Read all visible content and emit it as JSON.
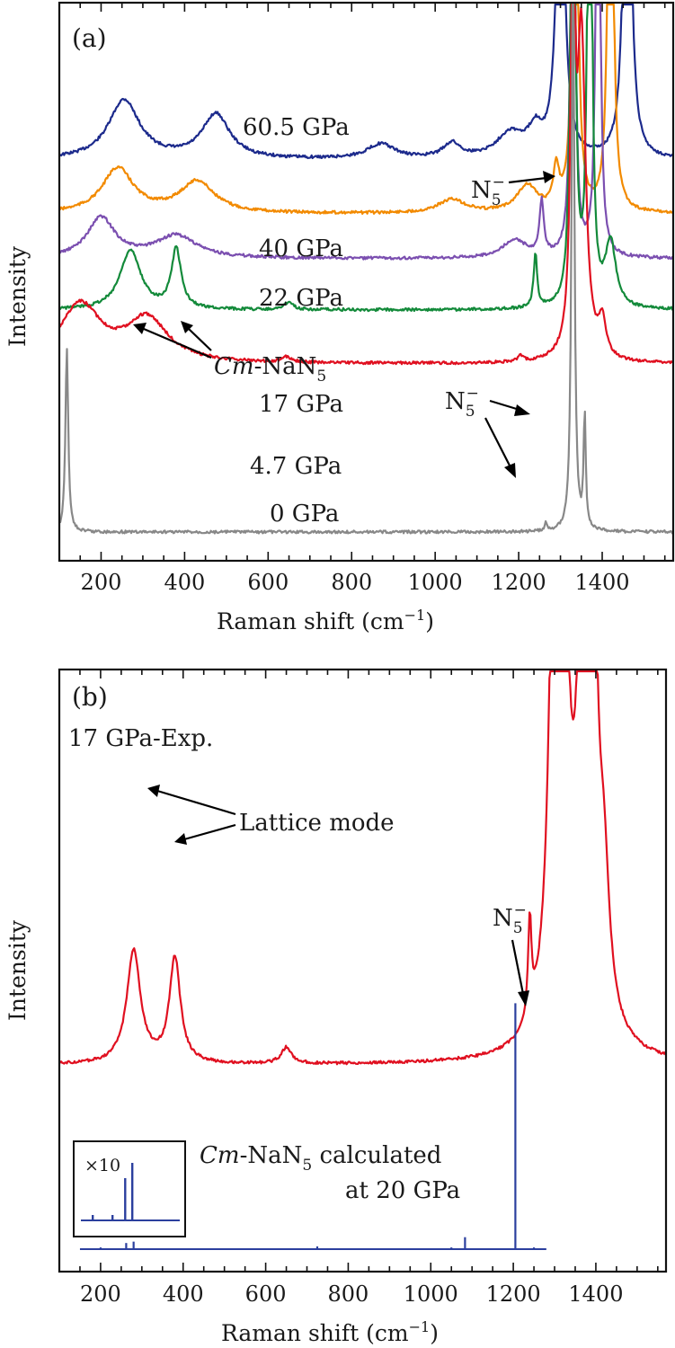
{
  "chart_data": [
    {
      "panel": "(a)",
      "type": "line",
      "xlabel_text": "Raman shift (cm",
      "xlabel_sup": "−1",
      "xlabel_close": ")",
      "ylabel": "Intensity",
      "xlim": [
        100,
        1570
      ],
      "ylim": [
        0,
        100
      ],
      "xticks": [
        200,
        400,
        600,
        800,
        1000,
        1200,
        1400
      ],
      "series": [
        {
          "name": "60.5 GPa",
          "color": "#1c2a8c",
          "peaks": [
            [
              255,
              12,
              45
            ],
            [
              475,
              9,
              40
            ],
            [
              870,
              3,
              40
            ],
            [
              1040,
              3,
              25
            ],
            [
              1180,
              5,
              40
            ],
            [
              1240,
              5,
              20
            ],
            [
              1300,
              80,
              10
            ],
            [
              1460,
              120,
              8
            ]
          ]
        },
        {
          "name": "40 GPa",
          "color": "#f28a00",
          "peaks": [
            [
              240,
              10,
              45
            ],
            [
              430,
              7,
              50
            ],
            [
              1040,
              3,
              40
            ],
            [
              1220,
              6,
              30
            ],
            [
              1290,
              9,
              8
            ],
            [
              1335,
              140,
              6
            ],
            [
              1420,
              140,
              6
            ]
          ]
        },
        {
          "name": "22 GPa",
          "color": "#7b4fb0",
          "peaks": [
            [
              200,
              9,
              40
            ],
            [
              380,
              5,
              60
            ],
            [
              1190,
              4,
              35
            ],
            [
              1255,
              12,
              6
            ],
            [
              1330,
              140,
              5
            ],
            [
              1390,
              140,
              5
            ]
          ]
        },
        {
          "name": "17 GPa",
          "color": "#138a3a",
          "peaks": [
            [
              270,
              11,
              30
            ],
            [
              380,
              11,
              14
            ],
            [
              650,
              1.5,
              12
            ],
            [
              1240,
              10,
              5
            ],
            [
              1330,
              140,
              5
            ],
            [
              1370,
              140,
              5
            ],
            [
              1420,
              12,
              15
            ]
          ]
        },
        {
          "name": "4.7 GPa",
          "color": "#e01020",
          "peaks": [
            [
              150,
              16,
              60
            ],
            [
              310,
              12,
              60
            ],
            [
              645,
              1.5,
              12
            ],
            [
              1205,
              1.5,
              8
            ],
            [
              1330,
              140,
              5
            ],
            [
              1350,
              90,
              12
            ],
            [
              1400,
              10,
              10
            ]
          ]
        },
        {
          "name": "0 GPa",
          "color": "#888888",
          "peaks": [
            [
              118,
              45,
              4
            ],
            [
              1265,
              2,
              3
            ],
            [
              1330,
              140,
              4
            ],
            [
              1358,
              28,
              3
            ]
          ]
        }
      ],
      "annotations": [
        {
          "text": "N",
          "sub": "5",
          "sup": "−",
          "points_to_x": 1310
        },
        {
          "text": "N",
          "sub": "5",
          "sup": "−",
          "points_to_x": 1240
        },
        {
          "text_italic": "Cm",
          "text": "-NaN",
          "sub": "5",
          "points_to_x": [
            275,
            380
          ]
        }
      ]
    },
    {
      "panel": "(b)",
      "type": "line",
      "xlabel_text": "Raman shift (cm",
      "xlabel_sup": "−1",
      "xlabel_close": ")",
      "ylabel": "Intensity",
      "xlim": [
        100,
        1570
      ],
      "ylim": [
        0,
        100
      ],
      "xticks": [
        200,
        400,
        600,
        800,
        1000,
        1200,
        1400
      ],
      "series": [
        {
          "name": "17 GPa-Exp.",
          "color": "#e01020",
          "peaks": [
            [
              280,
              14,
              20
            ],
            [
              380,
              13,
              16
            ],
            [
              650,
              2,
              15
            ],
            [
              1240,
              12,
              5
            ],
            [
              1310,
              200,
              12
            ],
            [
              1380,
              200,
              12
            ],
            [
              1420,
              14,
              15
            ]
          ]
        },
        {
          "name": "Cm-NaN5 calculated at 20 GPa",
          "color": "#2b3f9e",
          "sticks": [
            [
              200,
              0.5
            ],
            [
              262,
              1.8
            ],
            [
              280,
              2.2
            ],
            [
              725,
              0.8
            ],
            [
              1050,
              0.5
            ],
            [
              1083,
              3.5
            ],
            [
              1205,
              72
            ],
            [
              1250,
              0.5
            ]
          ]
        }
      ],
      "inset": {
        "label": "×10",
        "sticks": [
          [
            180,
            6
          ],
          [
            230,
            6
          ],
          [
            262,
            47
          ],
          [
            280,
            64
          ],
          [
            320,
            1
          ]
        ]
      },
      "annotations": [
        {
          "text": "Lattice mode",
          "points_to_x": [
            280,
            380
          ]
        },
        {
          "text": "N",
          "sub": "5",
          "sup": "−",
          "points_to_x": 1240
        },
        {
          "text_italic": "Cm",
          "text": "-NaN",
          "sub": "5",
          "text_after": " calculated",
          "line2": "at 20 GPa"
        }
      ]
    }
  ]
}
